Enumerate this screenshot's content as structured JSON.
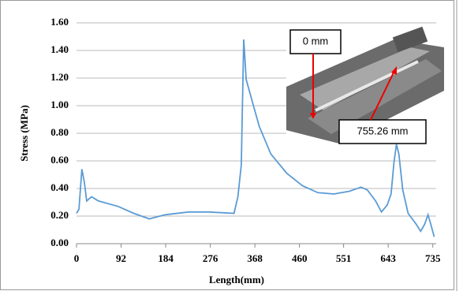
{
  "chart_data": {
    "type": "line",
    "x_label": "Length(mm)",
    "y_label": "Stress (MPa)",
    "x": [
      0,
      5,
      11,
      16,
      21,
      31,
      45,
      86,
      118,
      150,
      183,
      231,
      272,
      325,
      333,
      340,
      345,
      350,
      361,
      377,
      401,
      434,
      466,
      498,
      531,
      563,
      587,
      600,
      617,
      629,
      641,
      649,
      655,
      660,
      665,
      673,
      684,
      701,
      710,
      718,
      725,
      731,
      738
    ],
    "values": [
      0.22,
      0.25,
      0.54,
      0.45,
      0.31,
      0.34,
      0.31,
      0.27,
      0.22,
      0.18,
      0.21,
      0.23,
      0.23,
      0.22,
      0.34,
      0.57,
      1.48,
      1.19,
      1.05,
      0.85,
      0.65,
      0.51,
      0.42,
      0.37,
      0.36,
      0.38,
      0.41,
      0.39,
      0.31,
      0.23,
      0.28,
      0.36,
      0.59,
      0.72,
      0.65,
      0.39,
      0.22,
      0.14,
      0.09,
      0.14,
      0.21,
      0.14,
      0.05
    ],
    "color": "#5b9bd5",
    "xlim": [
      0,
      742
    ],
    "xticks": [
      0,
      92,
      184,
      276,
      368,
      460,
      551,
      643,
      735
    ],
    "ylim": [
      0,
      1.6
    ],
    "yticks": [
      {
        "value": 0,
        "label": "0.00"
      },
      {
        "value": 0.2,
        "label": "0.20"
      },
      {
        "value": 0.4,
        "label": "0.40"
      },
      {
        "value": 0.6,
        "label": "0.60"
      },
      {
        "value": 0.8,
        "label": "0.80"
      },
      {
        "value": 1,
        "label": "1.00"
      },
      {
        "value": 1.2,
        "label": "1.20"
      },
      {
        "value": 1.4,
        "label": "1.40"
      },
      {
        "value": 1.6,
        "label": "1.60"
      }
    ],
    "grid": true,
    "annotations": [
      "0 mm",
      "755.26 mm"
    ]
  }
}
